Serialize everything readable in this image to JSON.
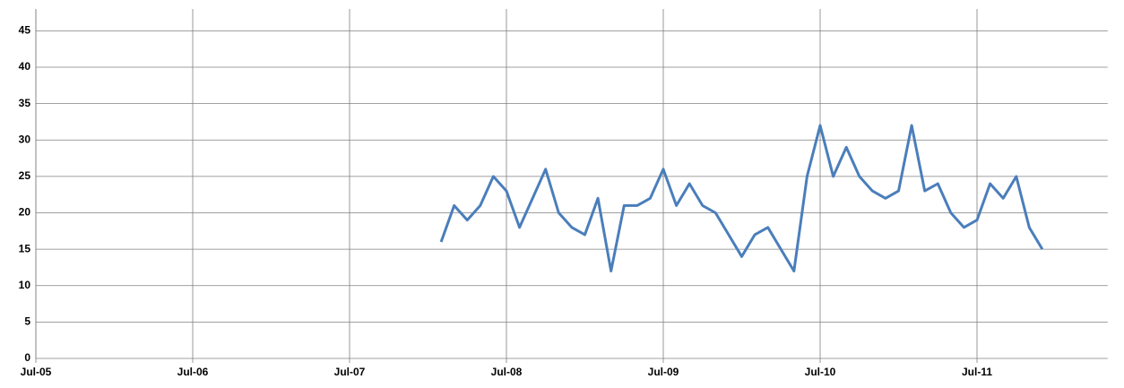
{
  "chart_data": {
    "type": "line",
    "x": [
      "2008-02",
      "2008-03",
      "2008-04",
      "2008-05",
      "2008-06",
      "2008-07",
      "2008-08",
      "2008-09",
      "2008-10",
      "2008-11",
      "2008-12",
      "2009-01",
      "2009-02",
      "2009-03",
      "2009-04",
      "2009-05",
      "2009-06",
      "2009-07",
      "2009-08",
      "2009-09",
      "2009-10",
      "2009-11",
      "2009-12",
      "2010-01",
      "2010-02",
      "2010-03",
      "2010-04",
      "2010-05",
      "2010-06",
      "2010-07",
      "2010-08",
      "2010-09",
      "2010-10",
      "2010-11",
      "2010-12",
      "2011-01",
      "2011-02",
      "2011-03",
      "2011-04",
      "2011-05",
      "2011-06",
      "2011-07",
      "2011-08",
      "2011-09",
      "2011-10",
      "2011-11",
      "2011-12"
    ],
    "values": [
      16,
      21,
      19,
      21,
      25,
      23,
      18,
      22,
      26,
      20,
      18,
      17,
      22,
      12,
      21,
      21,
      22,
      26,
      21,
      24,
      21,
      20,
      17,
      14,
      17,
      18,
      15,
      12,
      25,
      32,
      25,
      29,
      25,
      23,
      22,
      23,
      32,
      23,
      24,
      20,
      18,
      19,
      24,
      22,
      25,
      18,
      15
    ],
    "color": "#4a7ebb",
    "xlim": [
      "2005-07",
      "2012-05"
    ],
    "xticks": [
      {
        "value": "2005-07",
        "label": "Jul-05"
      },
      {
        "value": "2006-07",
        "label": "Jul-06"
      },
      {
        "value": "2007-07",
        "label": "Jul-07"
      },
      {
        "value": "2008-07",
        "label": "Jul-08"
      },
      {
        "value": "2009-07",
        "label": "Jul-09"
      },
      {
        "value": "2010-07",
        "label": "Jul-10"
      },
      {
        "value": "2011-07",
        "label": "Jul-11"
      }
    ],
    "ylim": [
      0,
      48
    ],
    "yticks": [
      0,
      5,
      10,
      15,
      20,
      25,
      30,
      35,
      40,
      45
    ],
    "grid": true
  }
}
